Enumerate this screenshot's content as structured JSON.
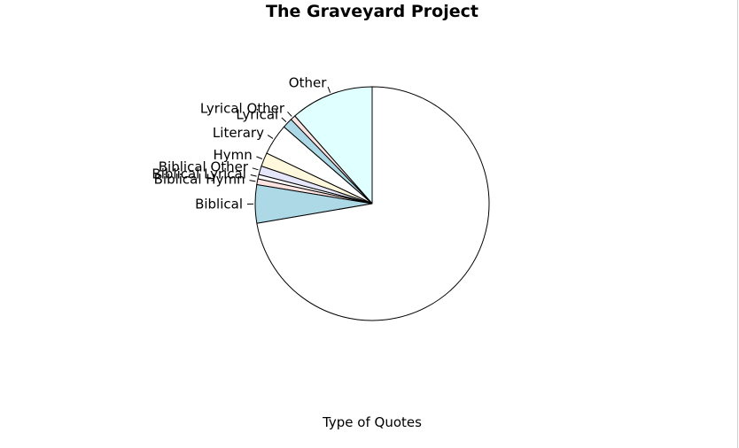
{
  "chart_data": {
    "type": "pie",
    "title": "The Graveyard Project",
    "xlabel": "Type of Quotes",
    "start_angle_deg": 90,
    "direction": "counterclockwise",
    "slices": [
      {
        "label": "Other",
        "value": 11.5,
        "color": "#e0ffff"
      },
      {
        "label": "Lyrical Other",
        "value": 0.7,
        "color": "#ffe4e1"
      },
      {
        "label": "Lyrical",
        "value": 1.4,
        "color": "#add8e6"
      },
      {
        "label": "Literary",
        "value": 4.3,
        "color": "#ffffff"
      },
      {
        "label": "Hymn",
        "value": 1.9,
        "color": "#fff8dc"
      },
      {
        "label": "Biblical Other",
        "value": 1.2,
        "color": "#e6e6fa"
      },
      {
        "label": "Biblical Lyrical",
        "value": 0.6,
        "color": "#ffffff"
      },
      {
        "label": "Biblical Hymn",
        "value": 0.8,
        "color": "#ffe4e1"
      },
      {
        "label": "Biblical",
        "value": 5.3,
        "color": "#add8e6"
      },
      {
        "label": "",
        "value": 72.3,
        "color": "#ffffff"
      }
    ]
  }
}
